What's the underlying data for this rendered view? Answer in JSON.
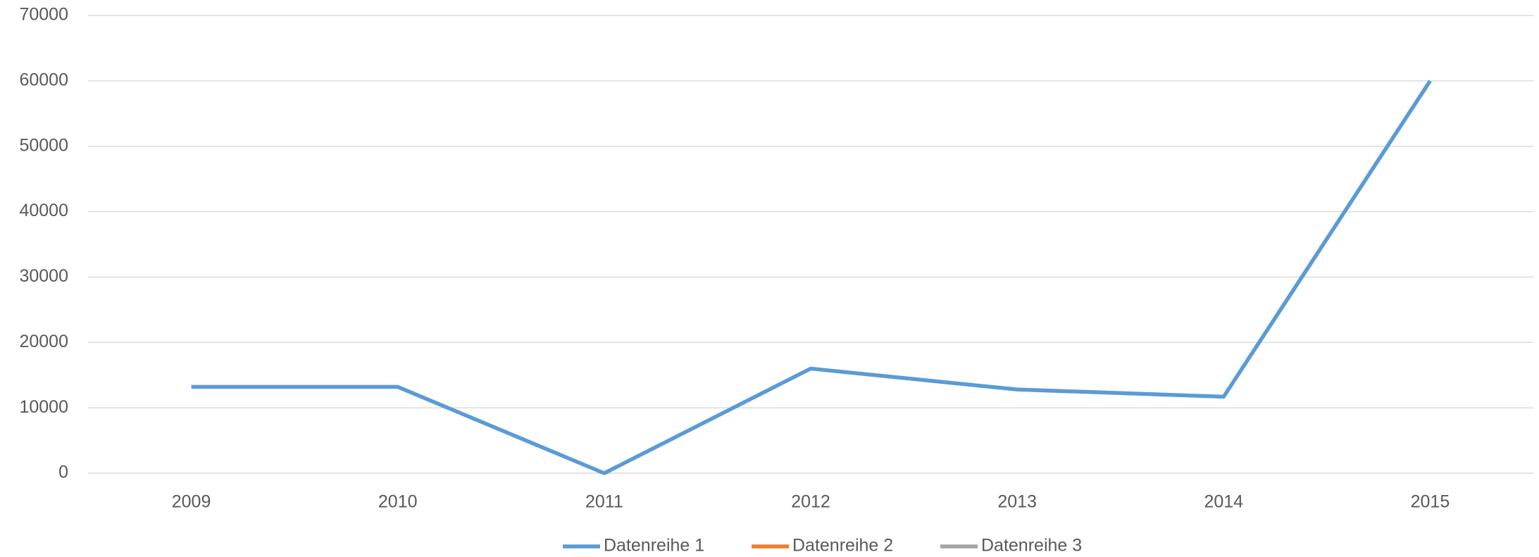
{
  "chart_data": {
    "type": "line",
    "categories": [
      "2009",
      "2010",
      "2011",
      "2012",
      "2013",
      "2014",
      "2015"
    ],
    "series": [
      {
        "name": "Datenreihe 1",
        "color": "#5b9bd5",
        "values": [
          13200,
          13200,
          0,
          16000,
          12800,
          11700,
          60000
        ]
      },
      {
        "name": "Datenreihe 2",
        "color": "#ed7d31",
        "values": [
          null,
          null,
          null,
          null,
          null,
          null,
          null
        ]
      },
      {
        "name": "Datenreihe 3",
        "color": "#a5a5a5",
        "values": [
          null,
          null,
          null,
          null,
          null,
          null,
          null
        ]
      }
    ],
    "ylim": [
      0,
      70000
    ],
    "yticks": [
      0,
      10000,
      20000,
      30000,
      40000,
      50000,
      60000,
      70000
    ],
    "grid": true,
    "legend": "bottom"
  }
}
